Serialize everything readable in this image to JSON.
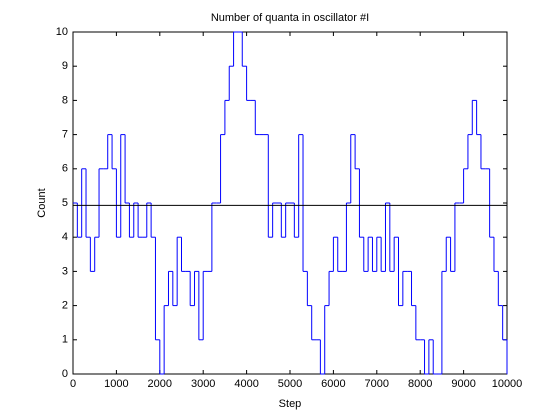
{
  "chart_data": {
    "type": "stairs",
    "title": "Number of quanta in oscillator #I",
    "xlabel": "Step",
    "ylabel": "Count",
    "x": [
      0,
      100,
      200,
      300,
      400,
      500,
      600,
      700,
      800,
      900,
      1000,
      1100,
      1200,
      1300,
      1400,
      1500,
      1600,
      1700,
      1800,
      1900,
      2000,
      2100,
      2200,
      2300,
      2400,
      2500,
      2600,
      2700,
      2800,
      2900,
      3000,
      3100,
      3200,
      3300,
      3400,
      3500,
      3600,
      3700,
      3800,
      3900,
      4000,
      4100,
      4200,
      4300,
      4400,
      4500,
      4600,
      4700,
      4800,
      4900,
      5000,
      5100,
      5200,
      5300,
      5400,
      5500,
      5600,
      5700,
      5800,
      5900,
      6000,
      6100,
      6200,
      6300,
      6400,
      6500,
      6600,
      6700,
      6800,
      6900,
      7000,
      7100,
      7200,
      7300,
      7400,
      7500,
      7600,
      7700,
      7800,
      7900,
      8000,
      8100,
      8200,
      8300,
      8400,
      8500,
      8600,
      8700,
      8800,
      8900,
      9000,
      9100,
      9200,
      9300,
      9400,
      9500,
      9600,
      9700,
      9800,
      9900,
      10000
    ],
    "values": [
      5,
      4,
      6,
      4,
      3,
      4,
      6,
      6,
      7,
      6,
      4,
      7,
      5,
      4,
      5,
      4,
      4,
      5,
      4,
      1,
      0,
      2,
      3,
      2,
      4,
      3,
      3,
      2,
      3,
      1,
      3,
      3,
      5,
      5,
      7,
      8,
      9,
      10,
      10,
      9,
      8,
      8,
      7,
      7,
      7,
      4,
      5,
      5,
      4,
      5,
      5,
      4,
      7,
      3,
      2,
      1,
      1,
      0,
      2,
      3,
      4,
      3,
      3,
      5,
      7,
      6,
      4,
      3,
      4,
      3,
      4,
      3,
      5,
      3,
      4,
      2,
      3,
      3,
      2,
      1,
      1,
      0,
      1,
      0,
      0,
      3,
      4,
      3,
      5,
      5,
      6,
      7,
      8,
      7,
      6,
      6,
      4,
      3,
      2,
      1,
      0
    ],
    "color": "#0000ff",
    "hline": 4.93,
    "hline_color": "#000000",
    "xlim": [
      0,
      10000
    ],
    "ylim": [
      0,
      10
    ],
    "xticks": [
      0,
      1000,
      2000,
      3000,
      4000,
      5000,
      6000,
      7000,
      8000,
      9000,
      10000
    ],
    "yticks": [
      0,
      1,
      2,
      3,
      4,
      5,
      6,
      7,
      8,
      9,
      10
    ],
    "grid": false
  }
}
